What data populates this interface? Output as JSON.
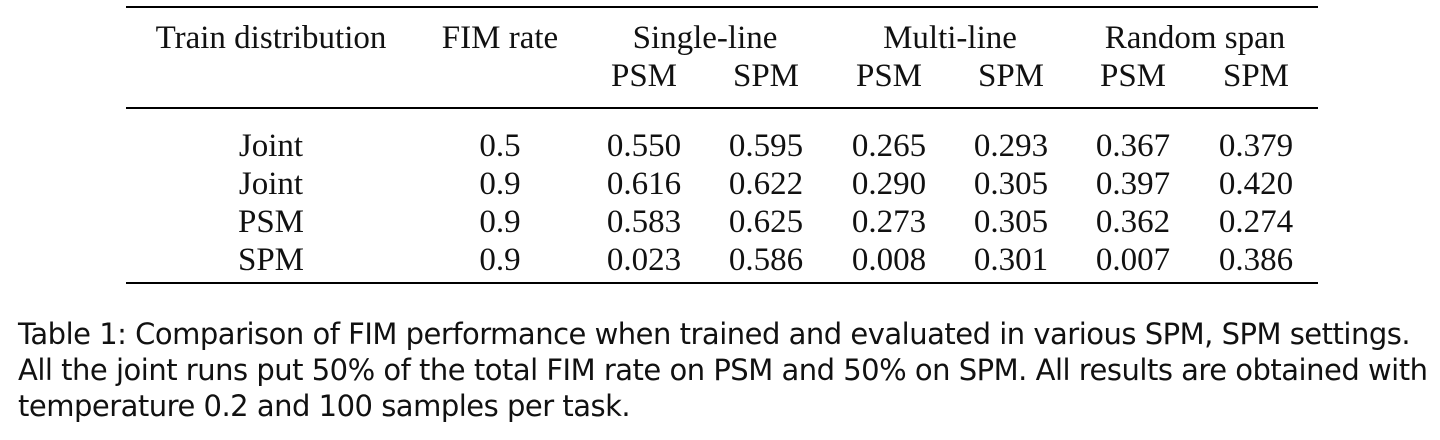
{
  "table": {
    "group_headers": [
      "Train distribution",
      "FIM rate",
      "Single-line",
      "Multi-line",
      "Random span"
    ],
    "sub_headers": [
      "PSM",
      "SPM",
      "PSM",
      "SPM",
      "PSM",
      "SPM"
    ],
    "rows": [
      [
        "Joint",
        "0.5",
        "0.550",
        "0.595",
        "0.265",
        "0.293",
        "0.367",
        "0.379"
      ],
      [
        "Joint",
        "0.9",
        "0.616",
        "0.622",
        "0.290",
        "0.305",
        "0.397",
        "0.420"
      ],
      [
        "PSM",
        "0.9",
        "0.583",
        "0.625",
        "0.273",
        "0.305",
        "0.362",
        "0.274"
      ],
      [
        "SPM",
        "0.9",
        "0.023",
        "0.586",
        "0.008",
        "0.301",
        "0.007",
        "0.386"
      ]
    ]
  },
  "caption": "Table 1: Comparison of FIM performance when trained and evaluated in various SPM, SPM settings. All the joint runs put 50% of the total FIM rate on PSM and 50% on SPM. All results are obtained with temperature 0.2 and 100 samples per task."
}
